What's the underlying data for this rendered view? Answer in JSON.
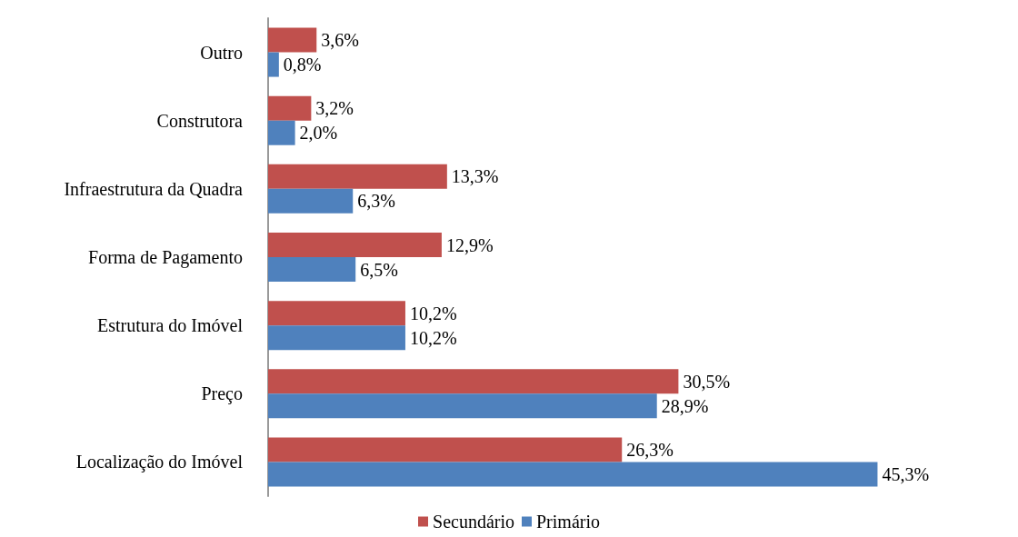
{
  "chart_data": {
    "type": "bar",
    "orientation": "horizontal",
    "categories": [
      "Outro",
      "Construtora",
      "Infraestrutura da Quadra",
      "Forma de Pagamento",
      "Estrutura do Imóvel",
      "Preço",
      "Localização do Imóvel"
    ],
    "series": [
      {
        "name": "Secundário",
        "color": "#c0504d",
        "values": [
          3.6,
          3.2,
          13.3,
          12.9,
          10.2,
          30.5,
          26.3
        ],
        "value_labels": [
          "3,6%",
          "3,2%",
          "13,3%",
          "12,9%",
          "10,2%",
          "30,5%",
          "26,3%"
        ]
      },
      {
        "name": "Primário",
        "color": "#4f81bd",
        "values": [
          0.8,
          2.0,
          6.3,
          6.5,
          10.2,
          28.9,
          45.3
        ],
        "value_labels": [
          "0,8%",
          "2,0%",
          "6,3%",
          "6,5%",
          "10,2%",
          "28,9%",
          "45,3%"
        ]
      }
    ],
    "legend": "bottom",
    "grid": false
  }
}
